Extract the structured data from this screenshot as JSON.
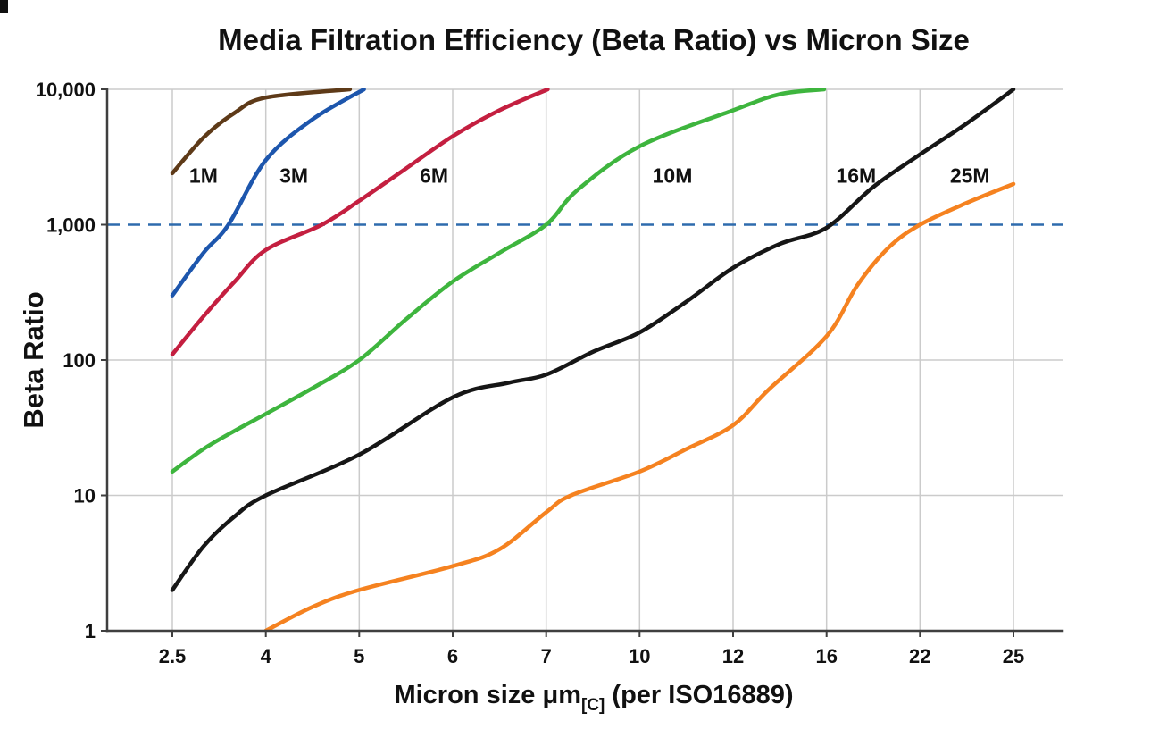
{
  "chart_data": {
    "type": "line",
    "title": "Media Filtration Efficiency (Beta Ratio) vs Micron Size",
    "ylabel": "Beta Ratio",
    "xlabel_prefix": "Micron size μm",
    "xlabel_subscript": "[C]",
    "xlabel_suffix": " (per ISO16889)",
    "x_axis": {
      "scale": "categorical",
      "categories": [
        2.5,
        4,
        5,
        6,
        7,
        10,
        12,
        16,
        22,
        25
      ],
      "tick_labels": [
        "2.5",
        "4",
        "5",
        "6",
        "7",
        "10",
        "12",
        "16",
        "22",
        "25"
      ]
    },
    "y_axis": {
      "scale": "log",
      "min": 1,
      "max": 10000,
      "ticks": [
        {
          "value": 10000,
          "label": "10,000"
        },
        {
          "value": 1000,
          "label": "1,000"
        },
        {
          "value": 100,
          "label": "100"
        },
        {
          "value": 10,
          "label": "10"
        },
        {
          "value": 1,
          "label": "1"
        }
      ]
    },
    "grid": {
      "show": true,
      "color": "#cbcbcb"
    },
    "reference_line": {
      "value": 1000,
      "style": "dashed",
      "color": "#2e6bad"
    },
    "series": [
      {
        "name": "1M",
        "color": "#5e3a18",
        "label": {
          "x": 3.0,
          "y": 2300
        },
        "points": [
          [
            2.5,
            2400
          ],
          [
            3,
            4400
          ],
          [
            3.5,
            6700
          ],
          [
            4,
            8700
          ],
          [
            4.9,
            10000
          ]
        ]
      },
      {
        "name": "3M",
        "color": "#1d56ad",
        "label": {
          "x": 4.3,
          "y": 2300
        },
        "points": [
          [
            2.5,
            300
          ],
          [
            3,
            620
          ],
          [
            3.4,
            1000
          ],
          [
            4,
            3000
          ],
          [
            4.5,
            6000
          ],
          [
            5.05,
            10000
          ]
        ]
      },
      {
        "name": "6M",
        "color": "#c41f40",
        "label": {
          "x": 5.8,
          "y": 2300
        },
        "points": [
          [
            2.5,
            110
          ],
          [
            3,
            210
          ],
          [
            3.5,
            380
          ],
          [
            4,
            650
          ],
          [
            4.6,
            1000
          ],
          [
            5,
            1500
          ],
          [
            5.5,
            2600
          ],
          [
            6,
            4500
          ],
          [
            6.5,
            7000
          ],
          [
            7.05,
            10000
          ]
        ]
      },
      {
        "name": "10M",
        "color": "#3eb53e",
        "label": {
          "x": 10.7,
          "y": 2300
        },
        "points": [
          [
            2.5,
            15
          ],
          [
            3,
            22
          ],
          [
            3.5,
            30
          ],
          [
            4,
            40
          ],
          [
            4.5,
            62
          ],
          [
            5,
            100
          ],
          [
            5.5,
            200
          ],
          [
            6,
            380
          ],
          [
            6.5,
            620
          ],
          [
            7,
            1000
          ],
          [
            8,
            1800
          ],
          [
            10,
            3800
          ],
          [
            12,
            7000
          ],
          [
            14,
            9200
          ],
          [
            15.9,
            10000
          ]
        ]
      },
      {
        "name": "16M",
        "color": "#161616",
        "label": {
          "x": 17.9,
          "y": 2300
        },
        "points": [
          [
            2.5,
            2
          ],
          [
            3,
            4.2
          ],
          [
            3.5,
            7
          ],
          [
            4,
            10
          ],
          [
            5,
            20
          ],
          [
            6,
            53
          ],
          [
            6.6,
            68
          ],
          [
            7,
            78
          ],
          [
            8.5,
            115
          ],
          [
            10,
            160
          ],
          [
            11,
            270
          ],
          [
            12,
            480
          ],
          [
            14,
            720
          ],
          [
            16,
            950
          ],
          [
            19,
            1900
          ],
          [
            22,
            3300
          ],
          [
            23.5,
            5600
          ],
          [
            25,
            10000
          ]
        ]
      },
      {
        "name": "25M",
        "color": "#f58220",
        "label": {
          "x": 23.6,
          "y": 2300
        },
        "points": [
          [
            4,
            1
          ],
          [
            4.5,
            1.5
          ],
          [
            5,
            2
          ],
          [
            6,
            3
          ],
          [
            6.5,
            4
          ],
          [
            7,
            7.5
          ],
          [
            7.8,
            10
          ],
          [
            10,
            15
          ],
          [
            11,
            22
          ],
          [
            12,
            33
          ],
          [
            13.5,
            60
          ],
          [
            16,
            150
          ],
          [
            18,
            360
          ],
          [
            20,
            680
          ],
          [
            22,
            1000
          ],
          [
            23.5,
            1450
          ],
          [
            25,
            2000
          ]
        ]
      }
    ]
  }
}
